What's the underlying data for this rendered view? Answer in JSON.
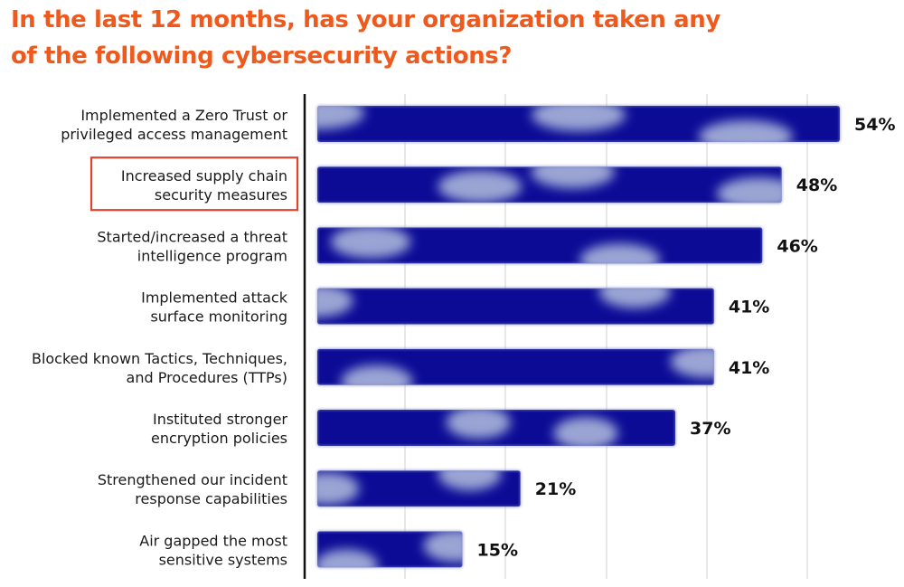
{
  "title": "In the last 12 months, has your organization taken any of the following cybersecurity actions?",
  "chart_data": {
    "type": "bar",
    "orientation": "horizontal",
    "title": "In the last 12 months, has your organization taken any of the following cybersecurity actions?",
    "categories": [
      [
        "Implemented a Zero Trust or",
        "privileged access management"
      ],
      [
        "Increased supply chain",
        "security measures"
      ],
      [
        "Started/increased a threat",
        "intelligence program"
      ],
      [
        "Implemented attack",
        "surface monitoring"
      ],
      [
        "Blocked known Tactics, Techniques,",
        "and Procedures (TTPs)"
      ],
      [
        "Instituted stronger",
        "encryption policies"
      ],
      [
        "Strengthened our incident",
        "response capabilities"
      ],
      [
        "Air gapped the most",
        "sensitive systems"
      ]
    ],
    "values": [
      54,
      48,
      46,
      41,
      41,
      37,
      21,
      15
    ],
    "value_labels": [
      "54%",
      "48%",
      "46%",
      "41%",
      "41%",
      "37%",
      "21%",
      "15%"
    ],
    "highlighted_index": 1,
    "xlim": [
      0,
      54
    ],
    "grid": true,
    "colors": {
      "title": "#ee5a1e",
      "bar_dark": "#0b0b96",
      "bar_light": "#aab6da",
      "highlight_box": "#e0442e",
      "gridline": "#d8d8d8",
      "axis": "#111111"
    }
  }
}
